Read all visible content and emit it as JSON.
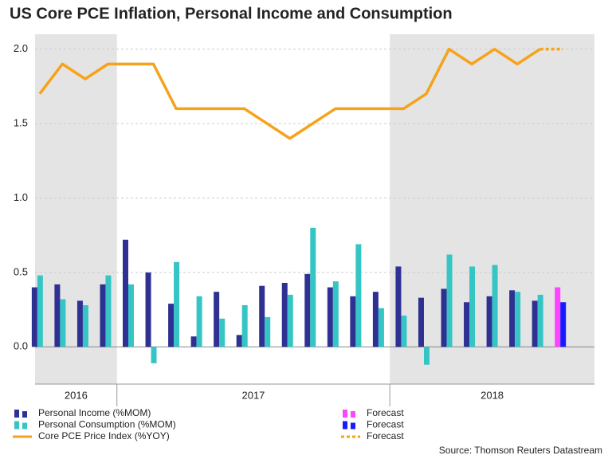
{
  "chart_data": {
    "type": "combo",
    "title": "US Core PCE Inflation, Personal Income and Consumption",
    "source": "Source: Thomson Reuters Datastream",
    "categories": [
      null,
      null,
      null,
      null,
      null,
      null,
      null,
      null,
      null,
      null,
      null,
      null,
      null,
      null,
      null,
      null,
      null,
      null,
      null,
      null,
      null,
      null,
      null,
      null
    ],
    "xlim": [
      -0.1,
      24.5
    ],
    "year_breaks": [
      3.5,
      15.5
    ],
    "year_labels": [
      "2016",
      "2017",
      "2018"
    ],
    "year_shaded": [
      true,
      false,
      true
    ],
    "ylim": [
      -0.25,
      2.1
    ],
    "yticks": [
      {
        "value": 0,
        "label": "0.0"
      },
      0.5,
      {
        "value": 1,
        "label": "1.0"
      },
      1.5,
      {
        "value": 2,
        "label": "2.0"
      }
    ],
    "grid": true,
    "series": [
      {
        "name": "Personal Income (%MOM)",
        "kind": "bar",
        "slot": -1,
        "color": "#2e3192",
        "values": [
          0.4,
          0.42,
          0.31,
          0.42,
          0.72,
          0.5,
          0.29,
          0.07,
          0.37,
          0.08,
          0.41,
          0.43,
          0.49,
          0.4,
          0.34,
          0.37,
          0.54,
          0.33,
          0.39,
          0.3,
          0.34,
          0.38,
          0.31,
          null
        ]
      },
      {
        "name": "Personal Consumption (%MOM)",
        "kind": "bar",
        "slot": 1,
        "color": "#36c5c5",
        "values": [
          0.48,
          0.32,
          0.28,
          0.48,
          0.42,
          -0.11,
          0.57,
          0.34,
          0.19,
          0.28,
          0.2,
          0.35,
          0.8,
          0.44,
          0.69,
          0.26,
          0.21,
          -0.12,
          0.62,
          0.54,
          0.55,
          0.37,
          0.35,
          null
        ]
      },
      {
        "name": "Core PCE Price Index (%YOY)",
        "kind": "line",
        "dashed": false,
        "color": "#f7a21b",
        "values": [
          1.7,
          1.9,
          1.8,
          1.9,
          1.9,
          1.9,
          1.6,
          1.6,
          1.6,
          1.6,
          1.5,
          1.4,
          1.5,
          1.6,
          1.6,
          1.6,
          1.6,
          1.7,
          2.0,
          1.9,
          2.0,
          1.9,
          2.0,
          null
        ]
      },
      {
        "name": "Forecast",
        "kind": "bar",
        "slot": -1,
        "color": "#ff44ff",
        "values": [
          null,
          null,
          null,
          null,
          null,
          null,
          null,
          null,
          null,
          null,
          null,
          null,
          null,
          null,
          null,
          null,
          null,
          null,
          null,
          null,
          null,
          null,
          null,
          0.4
        ]
      },
      {
        "name": "Forecast",
        "kind": "bar",
        "slot": 1,
        "color": "#1a1aff",
        "values": [
          null,
          null,
          null,
          null,
          null,
          null,
          null,
          null,
          null,
          null,
          null,
          null,
          null,
          null,
          null,
          null,
          null,
          null,
          null,
          null,
          null,
          null,
          null,
          0.3
        ]
      },
      {
        "name": "Forecast",
        "kind": "line",
        "dashed": true,
        "color": "#f7a21b",
        "values": [
          null,
          null,
          null,
          null,
          null,
          null,
          null,
          null,
          null,
          null,
          null,
          null,
          null,
          null,
          null,
          null,
          null,
          null,
          null,
          null,
          null,
          null,
          2.0,
          2.0
        ]
      }
    ]
  }
}
